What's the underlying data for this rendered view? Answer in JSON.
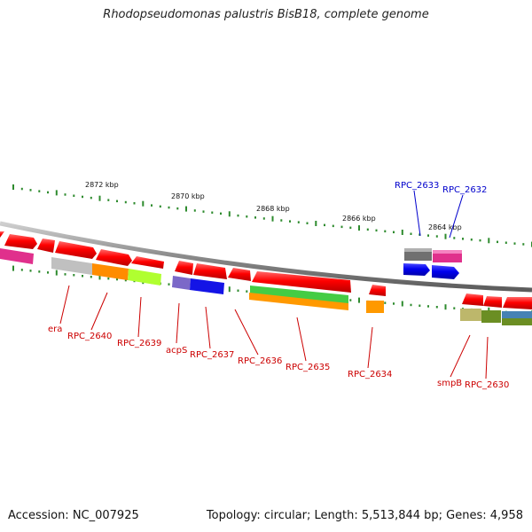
{
  "title": "Rhodopseudomonas palustris BisB18, complete genome",
  "footer": {
    "accession": "Accession: NC_007925",
    "summary": "Topology: circular; Length: 5,513,844 bp; Genes: 4,958"
  },
  "scale_labels": [
    "2872 kbp",
    "2870 kbp",
    "2868 kbp",
    "2866 kbp",
    "2864 kbp"
  ],
  "gene_labels": {
    "era": "era",
    "rpc2640": "RPC_2640",
    "rpc2639": "RPC_2639",
    "acps": "acpS",
    "rpc2637": "RPC_2637",
    "rpc2636": "RPC_2636",
    "rpc2635": "RPC_2635",
    "rpc2634": "RPC_2634",
    "smpb": "smpB",
    "rpc2630": "RPC_2630",
    "rpc2633": "RPC_2633",
    "rpc2632": "RPC_2632"
  },
  "colors": {
    "backbone": "#8c8c8c",
    "cds": "#ff0000",
    "tick": "#2e8b2e",
    "label_minus": "#cc0000",
    "label_plus": "#0000cc"
  }
}
